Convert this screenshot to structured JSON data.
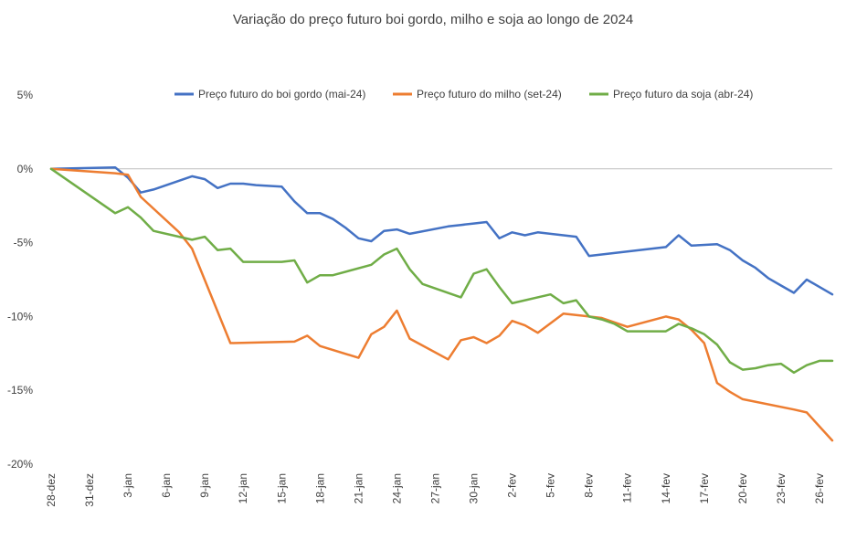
{
  "chart_data": {
    "type": "line",
    "title": "Variação do preço futuro boi gordo, milho e soja ao longo de 2024",
    "xlabel": "",
    "ylabel": "",
    "ylim": [
      -0.2,
      0.05
    ],
    "y_ticks": [
      0.05,
      0,
      -0.05,
      -0.1,
      -0.15,
      -0.2
    ],
    "y_tick_labels": [
      "5%",
      "0%",
      "-5%",
      "-10%",
      "-15%",
      "-20%"
    ],
    "x_tick_days": [
      0,
      3,
      6,
      9,
      12,
      15,
      18,
      21,
      24,
      27,
      30,
      33,
      36,
      39,
      42,
      45,
      48,
      51,
      54,
      57,
      60
    ],
    "x_tick_labels": [
      "28-dez",
      "31-dez",
      "3-jan",
      "6-jan",
      "9-jan",
      "12-jan",
      "15-jan",
      "18-jan",
      "21-jan",
      "24-jan",
      "27-jan",
      "30-jan",
      "2-fev",
      "5-fev",
      "8-fev",
      "11-fev",
      "14-fev",
      "17-fev",
      "20-fev",
      "23-fev",
      "26-fev"
    ],
    "x_range": [
      0,
      61
    ],
    "grid": false,
    "legend_position": "top",
    "colors": {
      "boi": "#4472C4",
      "milho": "#ED7D31",
      "soja": "#70AD47",
      "zero_line": "#BFBFBF",
      "text": "#404040"
    },
    "series": [
      {
        "name": "Preço futuro do boi gordo (mai-24)",
        "key": "boi",
        "x": [
          0,
          5,
          6,
          7,
          8,
          11,
          12,
          13,
          14,
          15,
          16,
          18,
          19,
          20,
          21,
          22,
          23,
          24,
          25,
          26,
          27,
          28,
          31,
          32,
          33,
          34,
          35,
          36,
          37,
          38,
          40,
          41,
          42,
          43,
          44,
          48,
          49,
          50,
          52,
          53,
          54,
          55,
          56,
          57,
          58,
          59,
          61
        ],
        "y": [
          0.0,
          0.001,
          -0.006,
          -0.016,
          -0.014,
          -0.005,
          -0.007,
          -0.013,
          -0.01,
          -0.01,
          -0.011,
          -0.012,
          -0.022,
          -0.03,
          -0.03,
          -0.034,
          -0.04,
          -0.047,
          -0.049,
          -0.042,
          -0.041,
          -0.044,
          -0.039,
          -0.038,
          -0.037,
          -0.036,
          -0.047,
          -0.043,
          -0.045,
          -0.043,
          -0.045,
          -0.046,
          -0.059,
          -0.058,
          -0.057,
          -0.053,
          -0.045,
          -0.052,
          -0.051,
          -0.055,
          -0.062,
          -0.067,
          -0.074,
          -0.079,
          -0.084,
          -0.075,
          -0.085
        ]
      },
      {
        "name": "Preço futuro do milho (set-24)",
        "key": "milho",
        "x": [
          0,
          5,
          6,
          7,
          10,
          11,
          14,
          19,
          20,
          21,
          24,
          25,
          26,
          27,
          28,
          31,
          32,
          33,
          34,
          35,
          36,
          37,
          38,
          40,
          43,
          45,
          48,
          49,
          50,
          51,
          52,
          53,
          54,
          58,
          59,
          61
        ],
        "y": [
          0.0,
          -0.003,
          -0.004,
          -0.019,
          -0.043,
          -0.054,
          -0.118,
          -0.117,
          -0.113,
          -0.12,
          -0.128,
          -0.112,
          -0.107,
          -0.096,
          -0.115,
          -0.129,
          -0.116,
          -0.114,
          -0.118,
          -0.113,
          -0.103,
          -0.106,
          -0.111,
          -0.098,
          -0.101,
          -0.107,
          -0.1,
          -0.102,
          -0.109,
          -0.118,
          -0.145,
          -0.151,
          -0.156,
          -0.163,
          -0.165,
          -0.184
        ]
      },
      {
        "name": "Preço futuro da soja (abr-24)",
        "key": "soja",
        "x": [
          0,
          5,
          6,
          7,
          8,
          11,
          12,
          13,
          14,
          15,
          18,
          19,
          20,
          21,
          22,
          25,
          26,
          27,
          28,
          29,
          32,
          33,
          34,
          35,
          36,
          39,
          40,
          41,
          42,
          43,
          44,
          45,
          48,
          49,
          50,
          51,
          52,
          53,
          54,
          55,
          56,
          57,
          58,
          59,
          60,
          61
        ],
        "y": [
          0.0,
          -0.03,
          -0.026,
          -0.033,
          -0.042,
          -0.048,
          -0.046,
          -0.055,
          -0.054,
          -0.063,
          -0.063,
          -0.062,
          -0.077,
          -0.072,
          -0.072,
          -0.065,
          -0.058,
          -0.054,
          -0.068,
          -0.078,
          -0.087,
          -0.071,
          -0.068,
          -0.08,
          -0.091,
          -0.085,
          -0.091,
          -0.089,
          -0.1,
          -0.102,
          -0.105,
          -0.11,
          -0.11,
          -0.105,
          -0.108,
          -0.112,
          -0.119,
          -0.131,
          -0.136,
          -0.135,
          -0.133,
          -0.132,
          -0.138,
          -0.133,
          -0.13,
          -0.13
        ]
      }
    ]
  }
}
